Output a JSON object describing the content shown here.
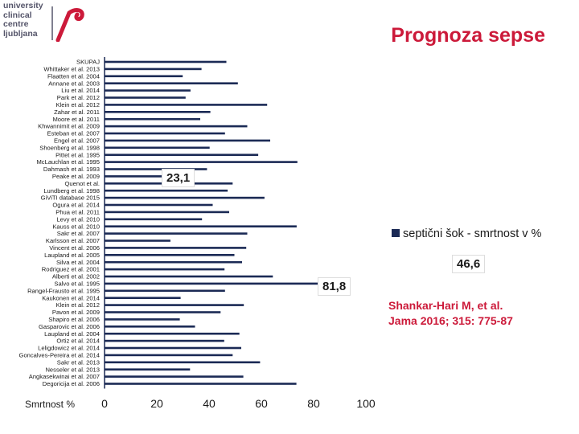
{
  "logo": {
    "lines": [
      "university",
      "clinical",
      "centre",
      "ljubljana"
    ],
    "mark": "ukc-logo-mark"
  },
  "title": "Prognoza sepse",
  "callouts": {
    "c1": "23,1",
    "c2": "46,6",
    "c3": "81,8"
  },
  "legend": {
    "label": "septični šok - smrtnost v %"
  },
  "reference": {
    "line1": "Shankar-Hari M, et al.",
    "line2": "Jama 2016; 315: 775-87"
  },
  "colors": {
    "bar": "#1b2a55",
    "title": "#cc1a3a",
    "axis": "#1b2a55"
  },
  "chart_data": {
    "type": "bar",
    "orientation": "horizontal",
    "xlabel": "Smrtnost %",
    "xlim": [
      0,
      100
    ],
    "xticks": [
      0,
      20,
      40,
      60,
      80,
      100
    ],
    "categories": [
      "SKUPAJ",
      "Whittaker et al. 2013",
      "Flaatten et al. 2004",
      "Annane et al. 2003",
      "Liu et al. 2014",
      "Park et al. 2012",
      "Klein et al. 2012",
      "Zahar et al. 2011",
      "Moore et al. 2011",
      "Khwannimit et al. 2009",
      "Esteban et al. 2007",
      "Engel et al. 2007",
      "Shoenberg et al. 1998",
      "Pittet et al. 1995",
      "McLauchlan et al. 1995",
      "Dahmash et al. 1993",
      "Peake et al. 2009",
      "Quenot et al.",
      "Lundberg et al. 1998",
      "GiViTI database 2015",
      "Ogura et al. 2014",
      "Phua et al. 2011",
      "Levy et al. 2010",
      "Kauss et al. 2010",
      "Sakr et al. 2007",
      "Karlsson et al. 2007",
      "Vincent et al. 2006",
      "Laupland et al. 2005",
      "Silva et al. 2004",
      "Rodriguez et al. 2001",
      "Alberti et al. 2002",
      "Salvo et al. 1995",
      "Rangel-Frausto et al. 1995",
      "Kaukonen et al. 2014",
      "Klein et al. 2012",
      "Pavon et al. 2009",
      "Shapiro et al. 2006",
      "Gasparovic et al. 2006",
      "Laupland et al. 2004",
      "Ortiz et al. 2014",
      "Leligdowicz et al. 2014",
      "Goncalves-Pereira et al. 2014",
      "Sakr et al. 2013",
      "Nesseler et al. 2013",
      "Angkasekwinai et al. 2007",
      "Degoricija et al. 2006"
    ],
    "values": [
      46.6,
      37.1,
      29.9,
      51.0,
      32.9,
      31.0,
      62.2,
      40.5,
      36.6,
      54.6,
      46.1,
      63.4,
      40.2,
      58.8,
      73.8,
      39.2,
      23.1,
      49.0,
      47.1,
      61.2,
      41.4,
      47.7,
      37.3,
      73.5,
      54.6,
      25.2,
      54.2,
      49.7,
      52.6,
      45.9,
      64.4,
      81.8,
      46.1,
      29.1,
      53.3,
      44.4,
      28.8,
      34.6,
      51.6,
      45.8,
      52.3,
      49.0,
      59.5,
      32.7,
      53.1,
      73.4
    ],
    "grid": false,
    "legend_position": "right"
  }
}
